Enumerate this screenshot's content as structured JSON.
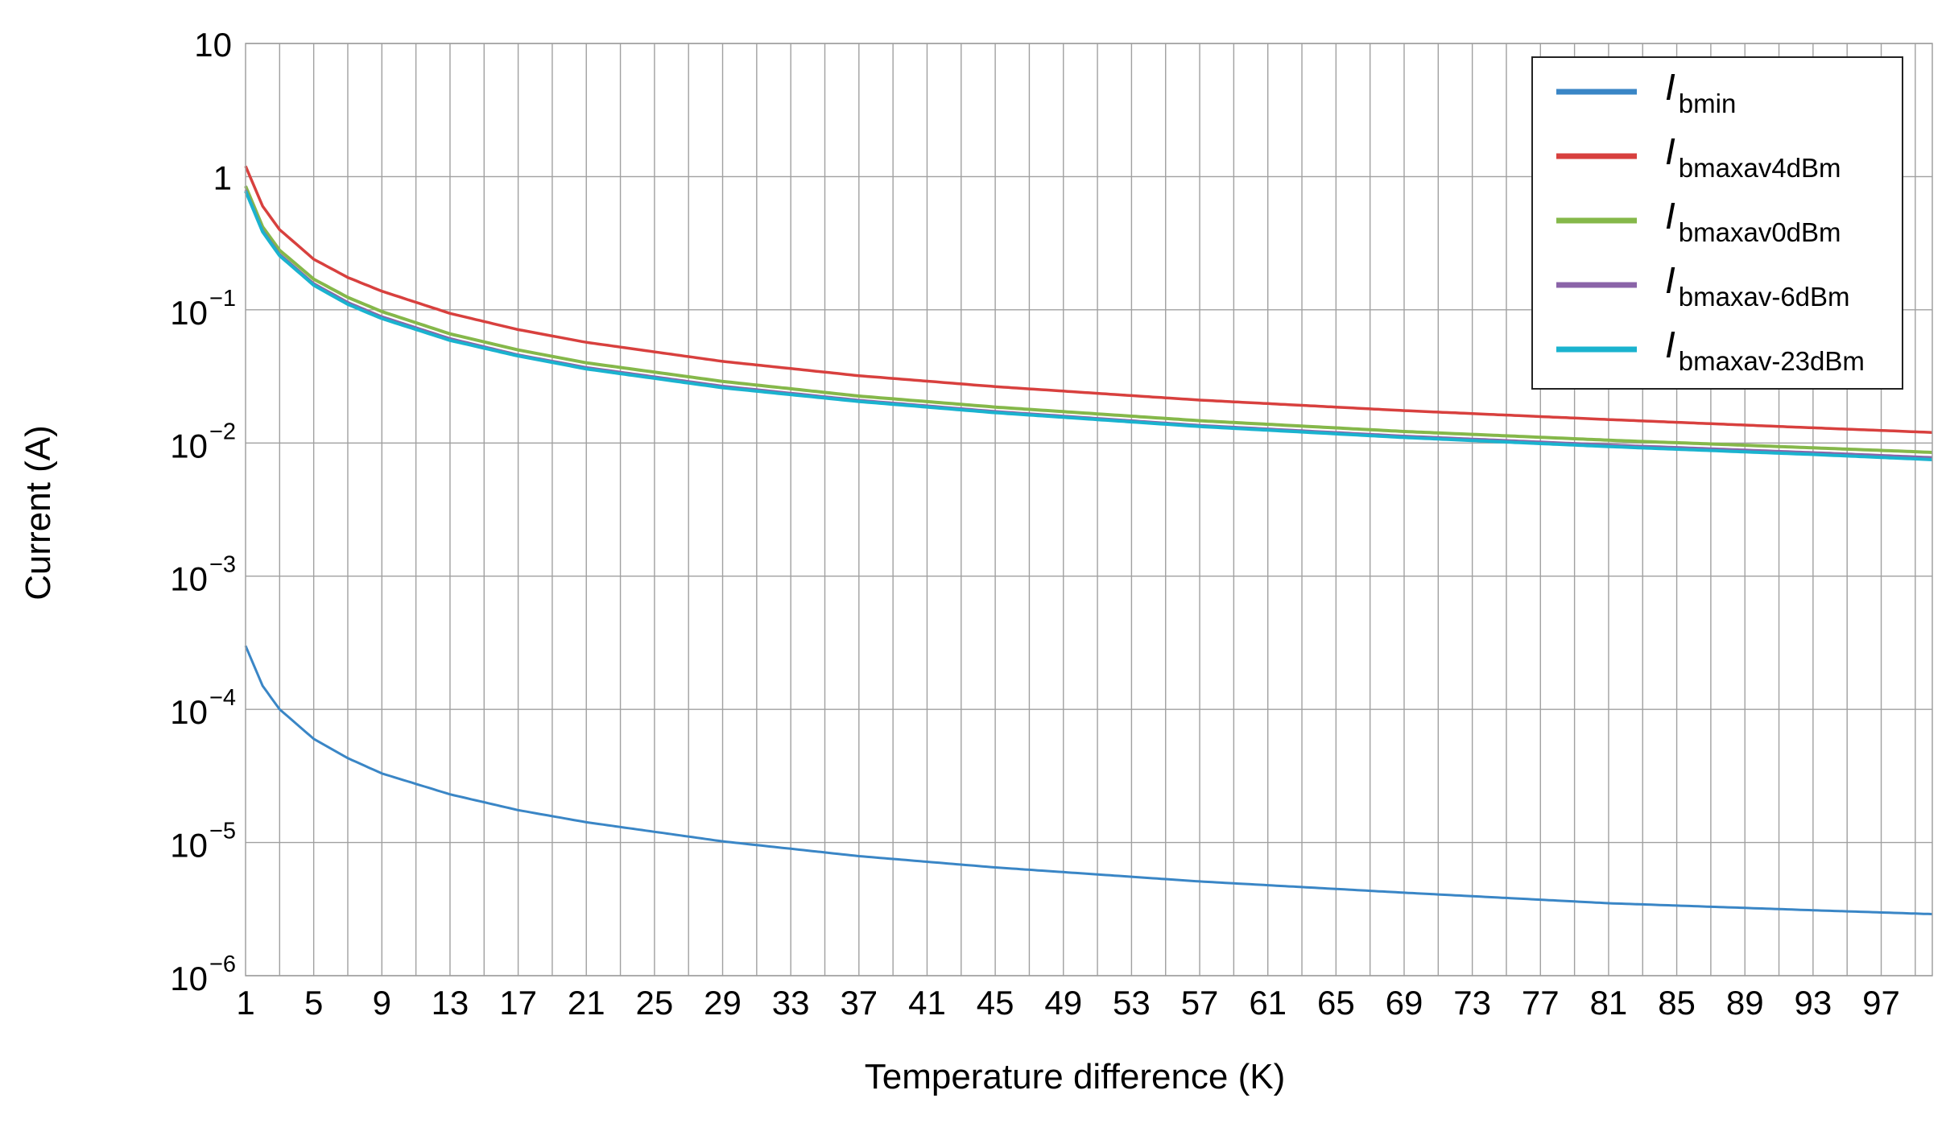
{
  "chart_data": {
    "type": "line",
    "xlabel": "Temperature difference (K)",
    "ylabel": "Current (A)",
    "x_scale": "linear",
    "y_scale": "log",
    "xlim": [
      1,
      100
    ],
    "ylim": [
      1e-06,
      10
    ],
    "x_ticks": [
      1,
      5,
      9,
      13,
      17,
      21,
      25,
      29,
      33,
      37,
      41,
      45,
      49,
      53,
      57,
      61,
      65,
      69,
      73,
      77,
      81,
      85,
      89,
      93,
      97
    ],
    "y_ticks": [
      {
        "value": 10,
        "base": "10",
        "exp": ""
      },
      {
        "value": 1,
        "base": "1",
        "exp": ""
      },
      {
        "value": 0.1,
        "base": "10",
        "exp": "−1"
      },
      {
        "value": 0.01,
        "base": "10",
        "exp": "−2"
      },
      {
        "value": 0.001,
        "base": "10",
        "exp": "−3"
      },
      {
        "value": 0.0001,
        "base": "10",
        "exp": "−4"
      },
      {
        "value": 1e-05,
        "base": "10",
        "exp": "−5"
      },
      {
        "value": 1e-06,
        "base": "10",
        "exp": "−6"
      }
    ],
    "grid": true,
    "legend_position": "top-right",
    "series": [
      {
        "name": "I",
        "name_sub": "bmin",
        "color": "#3a86c6",
        "width": 3,
        "x": [
          1,
          2,
          3,
          5,
          7,
          9,
          13,
          17,
          21,
          29,
          37,
          45,
          57,
          69,
          81,
          93,
          100
        ],
        "values": [
          0.0003,
          0.00015,
          0.0001,
          6e-05,
          4.3e-05,
          3.3e-05,
          2.3e-05,
          1.75e-05,
          1.42e-05,
          1.02e-05,
          7.9e-06,
          6.5e-06,
          5.1e-06,
          4.2e-06,
          3.5e-06,
          3.1e-06,
          2.9e-06
        ]
      },
      {
        "name": "I",
        "name_sub": "bmaxav4dBm",
        "color": "#d8403e",
        "width": 3.5,
        "x": [
          1,
          2,
          3,
          5,
          7,
          9,
          13,
          17,
          21,
          29,
          37,
          45,
          57,
          69,
          81,
          93,
          100
        ],
        "values": [
          1.2,
          0.6,
          0.4,
          0.24,
          0.175,
          0.138,
          0.094,
          0.071,
          0.057,
          0.041,
          0.032,
          0.0265,
          0.021,
          0.0175,
          0.015,
          0.013,
          0.012
        ]
      },
      {
        "name": "I",
        "name_sub": "bmaxav0dBm",
        "color": "#85b84a",
        "width": 4,
        "x": [
          1,
          2,
          3,
          5,
          7,
          9,
          13,
          17,
          21,
          29,
          37,
          45,
          57,
          69,
          81,
          93,
          100
        ],
        "values": [
          0.85,
          0.42,
          0.28,
          0.17,
          0.124,
          0.097,
          0.066,
          0.05,
          0.04,
          0.029,
          0.0225,
          0.0186,
          0.0147,
          0.0122,
          0.0105,
          0.0092,
          0.0085
        ]
      },
      {
        "name": "I",
        "name_sub": "bmaxav-6dBm",
        "color": "#8a64a8",
        "width": 3,
        "x": [
          1,
          2,
          3,
          5,
          7,
          9,
          13,
          17,
          21,
          29,
          37,
          45,
          57,
          69,
          81,
          93,
          100
        ],
        "values": [
          0.8,
          0.395,
          0.262,
          0.158,
          0.114,
          0.089,
          0.061,
          0.046,
          0.037,
          0.0268,
          0.021,
          0.0173,
          0.0136,
          0.0113,
          0.0097,
          0.0085,
          0.0078
        ]
      },
      {
        "name": "I",
        "name_sub": "bmaxav-23dBm",
        "color": "#1ab3cf",
        "width": 4,
        "x": [
          1,
          2,
          3,
          5,
          7,
          9,
          13,
          17,
          21,
          29,
          37,
          45,
          57,
          69,
          81,
          93,
          100
        ],
        "values": [
          0.78,
          0.385,
          0.255,
          0.153,
          0.11,
          0.086,
          0.059,
          0.045,
          0.036,
          0.026,
          0.0205,
          0.0169,
          0.0133,
          0.011,
          0.0094,
          0.0082,
          0.0075
        ]
      }
    ]
  }
}
